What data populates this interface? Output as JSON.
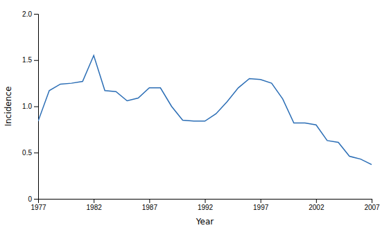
{
  "chart_data": {
    "type": "line",
    "x": [
      1977,
      1978,
      1979,
      1980,
      1981,
      1982,
      1983,
      1984,
      1985,
      1986,
      1987,
      1988,
      1989,
      1990,
      1991,
      1992,
      1993,
      1994,
      1995,
      1996,
      1997,
      1998,
      1999,
      2000,
      2001,
      2002,
      2003,
      2004,
      2005,
      2006,
      2007
    ],
    "values": [
      0.84,
      1.17,
      1.24,
      1.25,
      1.27,
      1.55,
      1.17,
      1.16,
      1.06,
      1.09,
      1.2,
      1.2,
      1.0,
      0.85,
      0.84,
      0.84,
      0.92,
      1.05,
      1.2,
      1.3,
      1.29,
      1.25,
      1.08,
      0.82,
      0.82,
      0.8,
      0.63,
      0.61,
      0.46,
      0.43,
      0.37
    ],
    "color": "#2a6db5",
    "xlabel": "Year",
    "ylabel": "Incidence",
    "xlim": [
      1977,
      2007
    ],
    "ylim": [
      0,
      2.0
    ],
    "xticks": [
      1977,
      1982,
      1987,
      1992,
      1997,
      2002,
      2007
    ],
    "yticks": [
      0,
      0.5,
      {
        "value": 1,
        "label": "1.0"
      },
      1.5,
      {
        "value": 2,
        "label": "2.0"
      }
    ]
  }
}
